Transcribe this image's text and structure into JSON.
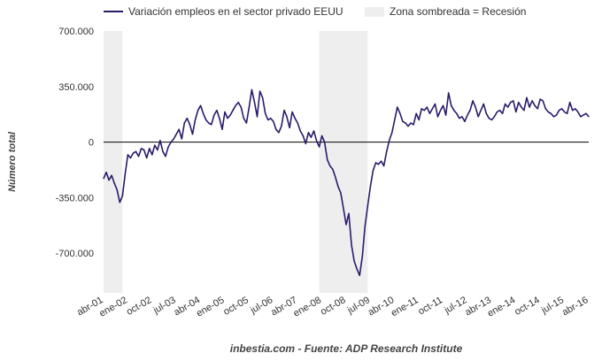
{
  "chart_data": {
    "type": "line",
    "legend": {
      "placement": "top",
      "series_label": "Variación empleos en el sector privado EEUU",
      "shaded_label": "Zona sombreada = Recesión"
    },
    "ylabel": "Número total",
    "source": "inbestia.com - Fuente: ADP Research Institute",
    "ylim": [
      -950000,
      700000
    ],
    "y_ticks": [
      {
        "value": 700000,
        "label": "700.000"
      },
      {
        "value": 350000,
        "label": "350.000"
      },
      {
        "value": 0,
        "label": "0"
      },
      {
        "value": -350000,
        "label": "-350.000"
      },
      {
        "value": -700000,
        "label": "-700.000"
      }
    ],
    "x_ticks": [
      {
        "date": "2001-04",
        "label": "abr-01"
      },
      {
        "date": "2002-01",
        "label": "ene-02"
      },
      {
        "date": "2002-10",
        "label": "oct-02"
      },
      {
        "date": "2003-07",
        "label": "jul-03"
      },
      {
        "date": "2004-04",
        "label": "abr-04"
      },
      {
        "date": "2005-01",
        "label": "ene-05"
      },
      {
        "date": "2005-10",
        "label": "oct-05"
      },
      {
        "date": "2006-07",
        "label": "jul-06"
      },
      {
        "date": "2007-04",
        "label": "abr-07"
      },
      {
        "date": "2008-01",
        "label": "ene-08"
      },
      {
        "date": "2008-10",
        "label": "oct-08"
      },
      {
        "date": "2009-07",
        "label": "jul-09"
      },
      {
        "date": "2010-04",
        "label": "abr-10"
      },
      {
        "date": "2011-01",
        "label": "ene-11"
      },
      {
        "date": "2011-10",
        "label": "oct-11"
      },
      {
        "date": "2012-07",
        "label": "jul-12"
      },
      {
        "date": "2013-04",
        "label": "abr-13"
      },
      {
        "date": "2014-01",
        "label": "ene-14"
      },
      {
        "date": "2014-10",
        "label": "oct-14"
      },
      {
        "date": "2015-07",
        "label": "jul-15"
      },
      {
        "date": "2016-04",
        "label": "abr-16"
      }
    ],
    "x_range": [
      "2001-04",
      "2016-04"
    ],
    "recessions": [
      {
        "start": "2001-04",
        "end": "2001-11"
      },
      {
        "start": "2007-12",
        "end": "2009-06"
      }
    ],
    "colors": {
      "line": "#2b1a6b",
      "recession": "#eeeeee",
      "zero_line": "#000000"
    },
    "series": [
      {
        "name": "Variación empleos en el sector privado EEUU",
        "points": [
          [
            "2001-04",
            -230000
          ],
          [
            "2001-05",
            -190000
          ],
          [
            "2001-06",
            -240000
          ],
          [
            "2001-07",
            -210000
          ],
          [
            "2001-08",
            -260000
          ],
          [
            "2001-09",
            -300000
          ],
          [
            "2001-10",
            -380000
          ],
          [
            "2001-11",
            -340000
          ],
          [
            "2001-12",
            -200000
          ],
          [
            "2002-01",
            -80000
          ],
          [
            "2002-02",
            -100000
          ],
          [
            "2002-03",
            -70000
          ],
          [
            "2002-04",
            -60000
          ],
          [
            "2002-05",
            -90000
          ],
          [
            "2002-06",
            -40000
          ],
          [
            "2002-07",
            -50000
          ],
          [
            "2002-08",
            -100000
          ],
          [
            "2002-09",
            -40000
          ],
          [
            "2002-10",
            -80000
          ],
          [
            "2002-11",
            -20000
          ],
          [
            "2002-12",
            -50000
          ],
          [
            "2003-01",
            10000
          ],
          [
            "2003-02",
            -60000
          ],
          [
            "2003-03",
            -90000
          ],
          [
            "2003-04",
            -30000
          ],
          [
            "2003-05",
            0
          ],
          [
            "2003-06",
            20000
          ],
          [
            "2003-07",
            50000
          ],
          [
            "2003-08",
            80000
          ],
          [
            "2003-09",
            20000
          ],
          [
            "2003-10",
            120000
          ],
          [
            "2003-11",
            150000
          ],
          [
            "2003-12",
            110000
          ],
          [
            "2004-01",
            50000
          ],
          [
            "2004-02",
            140000
          ],
          [
            "2004-03",
            200000
          ],
          [
            "2004-04",
            230000
          ],
          [
            "2004-05",
            180000
          ],
          [
            "2004-06",
            140000
          ],
          [
            "2004-07",
            120000
          ],
          [
            "2004-08",
            110000
          ],
          [
            "2004-09",
            170000
          ],
          [
            "2004-10",
            200000
          ],
          [
            "2004-11",
            150000
          ],
          [
            "2004-12",
            80000
          ],
          [
            "2005-01",
            190000
          ],
          [
            "2005-02",
            150000
          ],
          [
            "2005-03",
            170000
          ],
          [
            "2005-04",
            200000
          ],
          [
            "2005-05",
            230000
          ],
          [
            "2005-06",
            250000
          ],
          [
            "2005-07",
            220000
          ],
          [
            "2005-08",
            150000
          ],
          [
            "2005-09",
            120000
          ],
          [
            "2005-10",
            220000
          ],
          [
            "2005-11",
            330000
          ],
          [
            "2005-12",
            250000
          ],
          [
            "2006-01",
            160000
          ],
          [
            "2006-02",
            320000
          ],
          [
            "2006-03",
            280000
          ],
          [
            "2006-04",
            180000
          ],
          [
            "2006-05",
            140000
          ],
          [
            "2006-06",
            150000
          ],
          [
            "2006-07",
            130000
          ],
          [
            "2006-08",
            80000
          ],
          [
            "2006-09",
            60000
          ],
          [
            "2006-10",
            100000
          ],
          [
            "2006-11",
            200000
          ],
          [
            "2006-12",
            160000
          ],
          [
            "2007-01",
            90000
          ],
          [
            "2007-02",
            190000
          ],
          [
            "2007-03",
            150000
          ],
          [
            "2007-04",
            120000
          ],
          [
            "2007-05",
            70000
          ],
          [
            "2007-06",
            40000
          ],
          [
            "2007-07",
            -10000
          ],
          [
            "2007-08",
            60000
          ],
          [
            "2007-09",
            30000
          ],
          [
            "2007-10",
            70000
          ],
          [
            "2007-11",
            10000
          ],
          [
            "2007-12",
            -30000
          ],
          [
            "2008-01",
            40000
          ],
          [
            "2008-02",
            0
          ],
          [
            "2008-03",
            -110000
          ],
          [
            "2008-04",
            -150000
          ],
          [
            "2008-05",
            -170000
          ],
          [
            "2008-06",
            -220000
          ],
          [
            "2008-07",
            -280000
          ],
          [
            "2008-08",
            -320000
          ],
          [
            "2008-09",
            -420000
          ],
          [
            "2008-10",
            -520000
          ],
          [
            "2008-11",
            -450000
          ],
          [
            "2008-12",
            -650000
          ],
          [
            "2009-01",
            -750000
          ],
          [
            "2009-02",
            -800000
          ],
          [
            "2009-03",
            -840000
          ],
          [
            "2009-04",
            -720000
          ],
          [
            "2009-05",
            -530000
          ],
          [
            "2009-06",
            -400000
          ],
          [
            "2009-07",
            -280000
          ],
          [
            "2009-08",
            -180000
          ],
          [
            "2009-09",
            -130000
          ],
          [
            "2009-10",
            -140000
          ],
          [
            "2009-11",
            -120000
          ],
          [
            "2009-12",
            -150000
          ],
          [
            "2010-01",
            -60000
          ],
          [
            "2010-02",
            10000
          ],
          [
            "2010-03",
            60000
          ],
          [
            "2010-04",
            140000
          ],
          [
            "2010-05",
            220000
          ],
          [
            "2010-06",
            180000
          ],
          [
            "2010-07",
            130000
          ],
          [
            "2010-08",
            120000
          ],
          [
            "2010-09",
            100000
          ],
          [
            "2010-10",
            120000
          ],
          [
            "2010-11",
            110000
          ],
          [
            "2010-12",
            180000
          ],
          [
            "2011-01",
            140000
          ],
          [
            "2011-02",
            210000
          ],
          [
            "2011-03",
            200000
          ],
          [
            "2011-04",
            220000
          ],
          [
            "2011-05",
            180000
          ],
          [
            "2011-06",
            210000
          ],
          [
            "2011-07",
            240000
          ],
          [
            "2011-08",
            160000
          ],
          [
            "2011-09",
            200000
          ],
          [
            "2011-10",
            230000
          ],
          [
            "2011-11",
            170000
          ],
          [
            "2011-12",
            310000
          ],
          [
            "2012-01",
            230000
          ],
          [
            "2012-02",
            200000
          ],
          [
            "2012-03",
            180000
          ],
          [
            "2012-04",
            150000
          ],
          [
            "2012-05",
            160000
          ],
          [
            "2012-06",
            130000
          ],
          [
            "2012-07",
            170000
          ],
          [
            "2012-08",
            200000
          ],
          [
            "2012-09",
            260000
          ],
          [
            "2012-10",
            220000
          ],
          [
            "2012-11",
            160000
          ],
          [
            "2012-12",
            200000
          ],
          [
            "2013-01",
            240000
          ],
          [
            "2013-02",
            180000
          ],
          [
            "2013-03",
            150000
          ],
          [
            "2013-04",
            140000
          ],
          [
            "2013-05",
            160000
          ],
          [
            "2013-06",
            190000
          ],
          [
            "2013-07",
            200000
          ],
          [
            "2013-08",
            180000
          ],
          [
            "2013-09",
            240000
          ],
          [
            "2013-10",
            220000
          ],
          [
            "2013-11",
            250000
          ],
          [
            "2013-12",
            260000
          ],
          [
            "2014-01",
            190000
          ],
          [
            "2014-02",
            250000
          ],
          [
            "2014-03",
            220000
          ],
          [
            "2014-04",
            200000
          ],
          [
            "2014-05",
            280000
          ],
          [
            "2014-06",
            220000
          ],
          [
            "2014-07",
            260000
          ],
          [
            "2014-08",
            230000
          ],
          [
            "2014-09",
            210000
          ],
          [
            "2014-10",
            270000
          ],
          [
            "2014-11",
            260000
          ],
          [
            "2014-12",
            210000
          ],
          [
            "2015-01",
            190000
          ],
          [
            "2015-02",
            180000
          ],
          [
            "2015-03",
            160000
          ],
          [
            "2015-04",
            170000
          ],
          [
            "2015-05",
            200000
          ],
          [
            "2015-06",
            210000
          ],
          [
            "2015-07",
            190000
          ],
          [
            "2015-08",
            180000
          ],
          [
            "2015-09",
            250000
          ],
          [
            "2015-10",
            200000
          ],
          [
            "2015-11",
            210000
          ],
          [
            "2015-12",
            190000
          ],
          [
            "2016-01",
            160000
          ],
          [
            "2016-02",
            170000
          ],
          [
            "2016-03",
            180000
          ],
          [
            "2016-04",
            160000
          ]
        ]
      }
    ]
  }
}
